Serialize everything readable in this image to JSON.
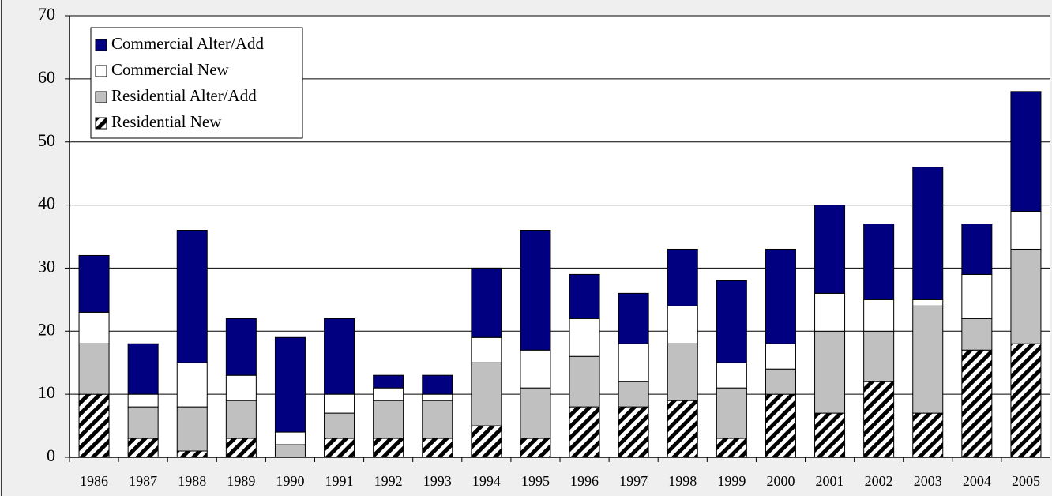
{
  "chart_data": {
    "type": "stacked-bar",
    "categories": [
      "1986",
      "1987",
      "1988",
      "1989",
      "1990",
      "1991",
      "1992",
      "1993",
      "1994",
      "1995",
      "1996",
      "1997",
      "1998",
      "1999",
      "2000",
      "2001",
      "2002",
      "2003",
      "2004",
      "2005"
    ],
    "series": [
      {
        "name": "Residential New",
        "color": "#000000",
        "pattern": "diagonal-hatch",
        "values": [
          10,
          3,
          1,
          3,
          0,
          3,
          3,
          3,
          5,
          3,
          8,
          8,
          9,
          3,
          10,
          7,
          12,
          7,
          17,
          18
        ]
      },
      {
        "name": "Residential Alter/Add",
        "color": "#c0c0c0",
        "values": [
          8,
          5,
          7,
          6,
          2,
          4,
          6,
          6,
          10,
          8,
          8,
          4,
          9,
          8,
          4,
          13,
          8,
          17,
          5,
          15
        ]
      },
      {
        "name": "Commercial New",
        "color": "#ffffff",
        "values": [
          5,
          2,
          7,
          4,
          2,
          3,
          2,
          1,
          4,
          6,
          6,
          6,
          6,
          4,
          4,
          6,
          5,
          1,
          7,
          6
        ]
      },
      {
        "name": "Commercial Alter/Add",
        "color": "#000080",
        "values": [
          9,
          8,
          21,
          9,
          15,
          12,
          2,
          3,
          11,
          19,
          7,
          8,
          9,
          13,
          15,
          14,
          12,
          21,
          8,
          19
        ]
      }
    ],
    "ylim": [
      0,
      70
    ],
    "yticks": [
      0,
      10,
      20,
      30,
      40,
      50,
      60,
      70
    ],
    "grid": true,
    "legend": "top-left"
  }
}
